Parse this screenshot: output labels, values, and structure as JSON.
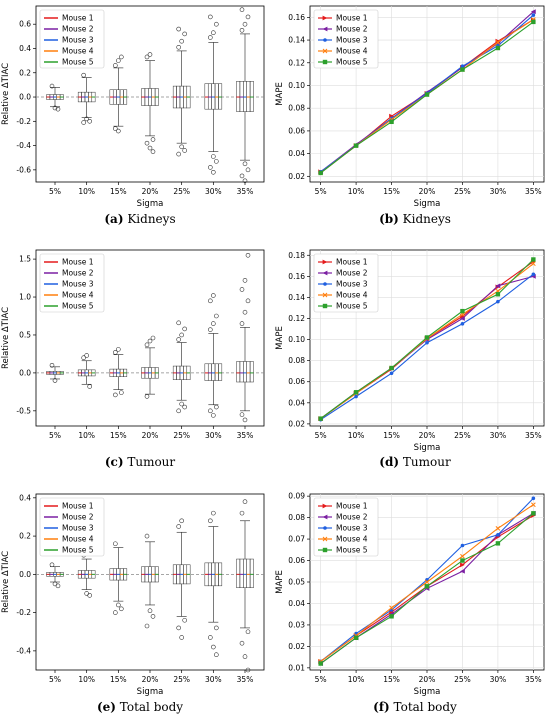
{
  "captions": [
    {
      "letter": "(a)",
      "text": "Kidneys"
    },
    {
      "letter": "(b)",
      "text": "Kidneys"
    },
    {
      "letter": "(c)",
      "text": "Tumour"
    },
    {
      "letter": "(d)",
      "text": "Tumour"
    },
    {
      "letter": "(e)",
      "text": "Total body"
    },
    {
      "letter": "(f)",
      "text": "Total body"
    }
  ],
  "colors": {
    "Mouse 1": "#e41a1c",
    "Mouse 2": "#7b1fa2",
    "Mouse 3": "#1f5fe0",
    "Mouse 4": "#ff7f0e",
    "Mouse 5": "#2ca02c"
  },
  "chart_data": [
    {
      "type": "box",
      "xlabel": "Sigma",
      "ylabel": "Relative ΔTIAC",
      "categories": [
        "5%",
        "10%",
        "15%",
        "20%",
        "25%",
        "30%",
        "35%"
      ],
      "ylim": [
        -0.7,
        0.75
      ],
      "yticks": [
        -0.6,
        -0.4,
        -0.2,
        0.0,
        0.2,
        0.4,
        0.6
      ],
      "reference_line": 0,
      "legend": [
        "Mouse 1",
        "Mouse 2",
        "Mouse 3",
        "Mouse 4",
        "Mouse 5"
      ],
      "legend_position": "upper-left",
      "boxes": [
        {
          "q1": -0.02,
          "q3": 0.02,
          "whisker_low": -0.08,
          "whisker_high": 0.08,
          "outliers": [
            0.09,
            -0.09,
            -0.1
          ]
        },
        {
          "q1": -0.04,
          "q3": 0.04,
          "whisker_low": -0.17,
          "whisker_high": 0.16,
          "outliers": [
            0.18,
            -0.18,
            -0.2,
            -0.21
          ]
        },
        {
          "q1": -0.06,
          "q3": 0.06,
          "whisker_low": -0.24,
          "whisker_high": 0.24,
          "outliers": [
            0.26,
            0.3,
            0.33,
            -0.26,
            -0.28
          ]
        },
        {
          "q1": -0.07,
          "q3": 0.07,
          "whisker_low": -0.32,
          "whisker_high": 0.3,
          "outliers": [
            0.33,
            0.35,
            -0.35,
            -0.38,
            -0.42,
            -0.45
          ]
        },
        {
          "q1": -0.09,
          "q3": 0.09,
          "whisker_low": -0.38,
          "whisker_high": 0.38,
          "outliers": [
            0.41,
            0.46,
            0.52,
            0.56,
            -0.41,
            -0.44,
            -0.47
          ]
        },
        {
          "q1": -0.1,
          "q3": 0.11,
          "whisker_low": -0.45,
          "whisker_high": 0.45,
          "outliers": [
            0.49,
            0.53,
            0.6,
            0.66,
            -0.49,
            -0.53,
            -0.58,
            -0.62
          ]
        },
        {
          "q1": -0.12,
          "q3": 0.13,
          "whisker_low": -0.52,
          "whisker_high": 0.52,
          "outliers": [
            0.55,
            0.6,
            0.66,
            0.72,
            -0.55,
            -0.6,
            -0.65,
            -0.69
          ]
        }
      ]
    },
    {
      "type": "line",
      "xlabel": "Sigma",
      "ylabel": "MAPE",
      "categories": [
        "5%",
        "10%",
        "15%",
        "20%",
        "25%",
        "30%",
        "35%"
      ],
      "ylim": [
        0.015,
        0.17
      ],
      "yticks": [
        0.02,
        0.04,
        0.06,
        0.08,
        0.1,
        0.12,
        0.14,
        0.16
      ],
      "legend_position": "upper-left",
      "series": [
        {
          "name": "Mouse 1",
          "marker": "tri-right",
          "values": [
            0.024,
            0.047,
            0.073,
            0.093,
            0.116,
            0.139,
            0.158
          ]
        },
        {
          "name": "Mouse 2",
          "marker": "tri-left",
          "values": [
            0.024,
            0.048,
            0.071,
            0.094,
            0.116,
            0.137,
            0.165
          ]
        },
        {
          "name": "Mouse 3",
          "marker": "dot",
          "values": [
            0.024,
            0.047,
            0.071,
            0.093,
            0.117,
            0.135,
            0.162
          ]
        },
        {
          "name": "Mouse 4",
          "marker": "x",
          "values": [
            0.023,
            0.047,
            0.07,
            0.092,
            0.114,
            0.138,
            0.158
          ]
        },
        {
          "name": "Mouse 5",
          "marker": "square",
          "values": [
            0.023,
            0.047,
            0.068,
            0.092,
            0.114,
            0.133,
            0.156
          ]
        }
      ]
    },
    {
      "type": "box",
      "xlabel": "",
      "ylabel": "Relative ΔTIAC",
      "categories": [
        "5%",
        "10%",
        "15%",
        "20%",
        "25%",
        "30%",
        "35%"
      ],
      "ylim": [
        -0.7,
        1.62
      ],
      "yticks": [
        -0.5,
        0.0,
        0.5,
        1.0,
        1.5
      ],
      "reference_line": 0,
      "legend": [
        "Mouse 1",
        "Mouse 2",
        "Mouse 3",
        "Mouse 4",
        "Mouse 5"
      ],
      "legend_position": "upper-left",
      "boxes": [
        {
          "q1": -0.02,
          "q3": 0.02,
          "whisker_low": -0.08,
          "whisker_high": 0.08,
          "outliers": [
            0.1,
            -0.1
          ]
        },
        {
          "q1": -0.04,
          "q3": 0.04,
          "whisker_low": -0.15,
          "whisker_high": 0.16,
          "outliers": [
            0.2,
            0.23,
            -0.18
          ]
        },
        {
          "q1": -0.05,
          "q3": 0.05,
          "whisker_low": -0.22,
          "whisker_high": 0.24,
          "outliers": [
            0.27,
            0.31,
            -0.26,
            -0.29
          ]
        },
        {
          "q1": -0.07,
          "q3": 0.07,
          "whisker_low": -0.28,
          "whisker_high": 0.33,
          "outliers": [
            0.37,
            0.42,
            0.46,
            -0.31
          ]
        },
        {
          "q1": -0.09,
          "q3": 0.09,
          "whisker_low": -0.36,
          "whisker_high": 0.4,
          "outliers": [
            0.44,
            0.5,
            0.58,
            0.66,
            -0.41,
            -0.45,
            -0.5
          ]
        },
        {
          "q1": -0.1,
          "q3": 0.12,
          "whisker_low": -0.42,
          "whisker_high": 0.52,
          "outliers": [
            0.57,
            0.65,
            0.75,
            0.95,
            1.02,
            -0.45,
            -0.5,
            -0.56
          ]
        },
        {
          "q1": -0.12,
          "q3": 0.15,
          "whisker_low": -0.5,
          "whisker_high": 0.6,
          "outliers": [
            0.65,
            0.8,
            0.95,
            1.1,
            1.22,
            1.55,
            -0.55,
            -0.62
          ]
        }
      ]
    },
    {
      "type": "line",
      "xlabel": "Sigma",
      "ylabel": "MAPE",
      "categories": [
        "5%",
        "10%",
        "15%",
        "20%",
        "25%",
        "30%",
        "35%"
      ],
      "ylim": [
        0.018,
        0.185
      ],
      "yticks": [
        0.02,
        0.04,
        0.06,
        0.08,
        0.1,
        0.12,
        0.14,
        0.16,
        0.18
      ],
      "legend_position": "upper-left",
      "series": [
        {
          "name": "Mouse 1",
          "marker": "tri-right",
          "values": [
            0.025,
            0.049,
            0.072,
            0.101,
            0.122,
            0.15,
            0.174
          ]
        },
        {
          "name": "Mouse 2",
          "marker": "tri-left",
          "values": [
            0.025,
            0.05,
            0.073,
            0.1,
            0.12,
            0.151,
            0.16
          ]
        },
        {
          "name": "Mouse 3",
          "marker": "dot",
          "values": [
            0.024,
            0.046,
            0.068,
            0.097,
            0.115,
            0.136,
            0.162
          ]
        },
        {
          "name": "Mouse 4",
          "marker": "x",
          "values": [
            0.025,
            0.049,
            0.073,
            0.101,
            0.124,
            0.146,
            0.172
          ]
        },
        {
          "name": "Mouse 5",
          "marker": "square",
          "values": [
            0.025,
            0.05,
            0.073,
            0.102,
            0.127,
            0.143,
            0.176
          ]
        }
      ]
    },
    {
      "type": "box",
      "xlabel": "Sigma",
      "ylabel": "Relative ΔTIAC",
      "categories": [
        "5%",
        "10%",
        "15%",
        "20%",
        "25%",
        "30%",
        "35%"
      ],
      "ylim": [
        -0.5,
        0.42
      ],
      "yticks": [
        -0.4,
        -0.2,
        0.0,
        0.2,
        0.4
      ],
      "reference_line": 0,
      "legend": [
        "Mouse 1",
        "Mouse 2",
        "Mouse 3",
        "Mouse 4",
        "Mouse 5"
      ],
      "legend_position": "upper-left",
      "boxes": [
        {
          "q1": -0.01,
          "q3": 0.01,
          "whisker_low": -0.04,
          "whisker_high": 0.04,
          "outliers": [
            0.05,
            -0.05,
            -0.06
          ]
        },
        {
          "q1": -0.02,
          "q3": 0.02,
          "whisker_low": -0.08,
          "whisker_high": 0.08,
          "outliers": [
            0.1,
            -0.1,
            -0.11
          ]
        },
        {
          "q1": -0.03,
          "q3": 0.03,
          "whisker_low": -0.14,
          "whisker_high": 0.14,
          "outliers": [
            0.16,
            -0.16,
            -0.18,
            -0.2
          ]
        },
        {
          "q1": -0.04,
          "q3": 0.04,
          "whisker_low": -0.16,
          "whisker_high": 0.17,
          "outliers": [
            0.2,
            -0.19,
            -0.22,
            -0.27
          ]
        },
        {
          "q1": -0.05,
          "q3": 0.05,
          "whisker_low": -0.22,
          "whisker_high": 0.22,
          "outliers": [
            0.25,
            0.28,
            -0.24,
            -0.28,
            -0.33
          ]
        },
        {
          "q1": -0.06,
          "q3": 0.06,
          "whisker_low": -0.25,
          "whisker_high": 0.25,
          "outliers": [
            0.28,
            0.32,
            -0.28,
            -0.33,
            -0.38,
            -0.42
          ]
        },
        {
          "q1": -0.07,
          "q3": 0.08,
          "whisker_low": -0.28,
          "whisker_high": 0.28,
          "outliers": [
            0.32,
            0.38,
            -0.3,
            -0.36,
            -0.43,
            -0.5
          ]
        }
      ]
    },
    {
      "type": "line",
      "xlabel": "Sigma",
      "ylabel": "MAPE",
      "categories": [
        "5%",
        "10%",
        "15%",
        "20%",
        "25%",
        "30%",
        "35%"
      ],
      "ylim": [
        0.009,
        0.091
      ],
      "yticks": [
        0.01,
        0.02,
        0.03,
        0.04,
        0.05,
        0.06,
        0.07,
        0.08,
        0.09
      ],
      "legend_position": "upper-left",
      "series": [
        {
          "name": "Mouse 1",
          "marker": "tri-right",
          "values": [
            0.013,
            0.025,
            0.036,
            0.048,
            0.058,
            0.071,
            0.081
          ]
        },
        {
          "name": "Mouse 2",
          "marker": "tri-left",
          "values": [
            0.012,
            0.024,
            0.035,
            0.047,
            0.055,
            0.072,
            0.082
          ]
        },
        {
          "name": "Mouse 3",
          "marker": "dot",
          "values": [
            0.013,
            0.026,
            0.037,
            0.051,
            0.067,
            0.072,
            0.089
          ]
        },
        {
          "name": "Mouse 4",
          "marker": "x",
          "values": [
            0.013,
            0.025,
            0.038,
            0.05,
            0.062,
            0.075,
            0.086
          ]
        },
        {
          "name": "Mouse 5",
          "marker": "square",
          "values": [
            0.012,
            0.024,
            0.034,
            0.048,
            0.06,
            0.068,
            0.082
          ]
        }
      ]
    }
  ]
}
